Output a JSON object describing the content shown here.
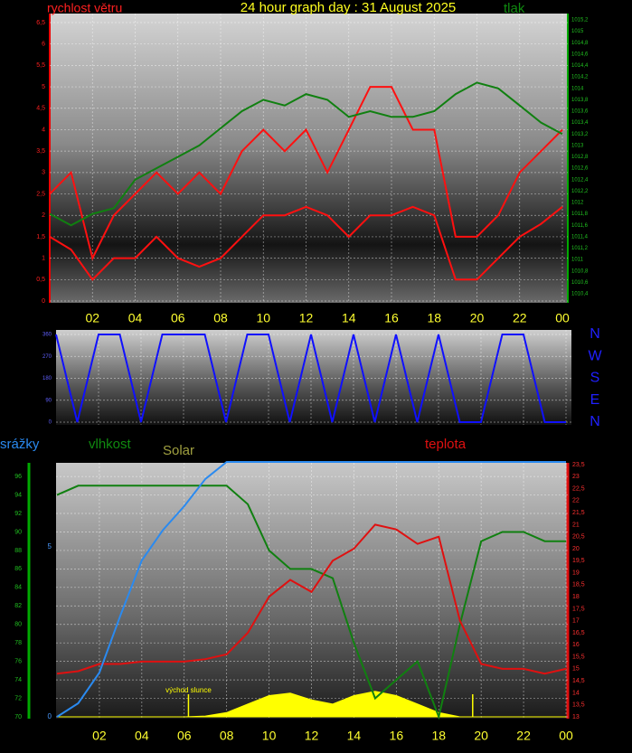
{
  "chart_data": [
    {
      "type": "line",
      "title": "24 hour graph day : 31 August 2025",
      "ylabel": "rychlost větru",
      "y2label": "tlak",
      "x": [
        0,
        1,
        2,
        3,
        4,
        5,
        6,
        7,
        8,
        9,
        10,
        11,
        12,
        13,
        14,
        15,
        16,
        17,
        18,
        19,
        20,
        21,
        22,
        23,
        24
      ],
      "xlim": [
        0,
        24
      ],
      "xticks": [
        {
          "value": 2,
          "label": "02"
        },
        {
          "value": 4,
          "label": "04"
        },
        {
          "value": 6,
          "label": "06"
        },
        {
          "value": 8,
          "label": "08"
        },
        10,
        12,
        14,
        16,
        18,
        20,
        22,
        {
          "value": 24,
          "label": "00"
        }
      ],
      "ylim": [
        0,
        6.5
      ],
      "yticks": [
        0,
        {
          "value": 0.5,
          "label": "0,5"
        },
        1,
        {
          "value": 1.5,
          "label": "1,5"
        },
        2,
        {
          "value": 2.5,
          "label": "2,5"
        },
        3,
        {
          "value": 3.5,
          "label": "3,5"
        },
        4,
        {
          "value": 4.5,
          "label": "4,5"
        },
        5,
        {
          "value": 5.5,
          "label": "5,5"
        },
        6,
        {
          "value": 6.5,
          "label": "6,5"
        }
      ],
      "y2lim": [
        1010.4,
        1015.2
      ],
      "y2ticks": [
        {
          "value": 1010.4,
          "label": "1010,4"
        },
        {
          "value": 1010.6,
          "label": "1010,6"
        },
        {
          "value": 1010.8,
          "label": "1010,8"
        },
        1011,
        {
          "value": 1011.2,
          "label": "1011,2"
        },
        {
          "value": 1011.4,
          "label": "1011,4"
        },
        {
          "value": 1011.6,
          "label": "1011,6"
        },
        {
          "value": 1011.8,
          "label": "1011,8"
        },
        1012,
        {
          "value": 1012.2,
          "label": "1012,2"
        },
        {
          "value": 1012.4,
          "label": "1012,4"
        },
        {
          "value": 1012.6,
          "label": "1012,6"
        },
        {
          "value": 1012.8,
          "label": "1012,8"
        },
        1013,
        {
          "value": 1013.2,
          "label": "1013,2"
        },
        {
          "value": 1013.4,
          "label": "1013,4"
        },
        {
          "value": 1013.6,
          "label": "1013,6"
        },
        {
          "value": 1013.8,
          "label": "1013,8"
        },
        1014,
        {
          "value": 1014.2,
          "label": "1014,2"
        },
        {
          "value": 1014.4,
          "label": "1014,4"
        },
        {
          "value": 1014.6,
          "label": "1014,6"
        },
        {
          "value": 1014.8,
          "label": "1014,8"
        },
        1015,
        {
          "value": 1015.2,
          "label": "1015,2"
        }
      ],
      "grid": true,
      "series": [
        {
          "color": "#ff1010",
          "values": [
            2.5,
            3,
            1,
            2,
            2.5,
            3,
            2.5,
            3,
            2.5,
            3.5,
            4,
            3.5,
            4,
            3,
            4,
            5,
            5,
            4,
            4,
            1.5,
            1.5,
            2,
            3,
            3.5,
            4
          ]
        },
        {
          "color": "#ff1010",
          "values": [
            1.5,
            1.2,
            0.5,
            1,
            1,
            1.5,
            1,
            0.8,
            1,
            1.5,
            2,
            2,
            2.2,
            2,
            1.5,
            2,
            2,
            2.2,
            2,
            0.5,
            0.5,
            1,
            1.5,
            1.8,
            2.2
          ]
        },
        {
          "color": "#108010",
          "axis": "y2",
          "values": [
            1011.8,
            1011.6,
            1011.8,
            1011.9,
            1012.4,
            1012.6,
            1012.8,
            1013,
            1013.3,
            1013.6,
            1013.8,
            1013.7,
            1013.9,
            1013.8,
            1013.5,
            1013.6,
            1013.5,
            1013.5,
            1013.6,
            1013.9,
            1014.1,
            1014,
            1013.7,
            1013.4,
            1013.2
          ]
        }
      ]
    },
    {
      "type": "line",
      "x": [
        0,
        1,
        2,
        3,
        4,
        5,
        6,
        7,
        8,
        9,
        10,
        11,
        12,
        13,
        14,
        15,
        16,
        17,
        18,
        19,
        20,
        21,
        22,
        23,
        24
      ],
      "xlim": [
        0,
        24
      ],
      "xticks": [
        2,
        4,
        6,
        8,
        10,
        12,
        14,
        16,
        18,
        20,
        22,
        24
      ],
      "ylim": [
        0,
        360
      ],
      "yticks": [
        0,
        90,
        180,
        270,
        360
      ],
      "y2lim": [
        0,
        360
      ],
      "y2ticks": [
        {
          "value": 360,
          "label": "N"
        },
        {
          "value": 270,
          "label": "W"
        },
        {
          "value": 180,
          "label": "S"
        },
        {
          "value": 90,
          "label": "E"
        },
        {
          "value": 0,
          "label": "N"
        }
      ],
      "grid": true,
      "series": [
        {
          "color": "#1010ff",
          "values": [
            360,
            0,
            360,
            360,
            0,
            360,
            360,
            360,
            0,
            360,
            360,
            0,
            360,
            0,
            360,
            0,
            360,
            0,
            360,
            0,
            0,
            360,
            360,
            0,
            0
          ]
        }
      ]
    },
    {
      "type": "line",
      "y3label": "srážky",
      "ylabel": "vlhkost",
      "y4label": "Solar",
      "y2label": "teplota",
      "annotation": {
        "text": "východ slunce",
        "x": 6.2
      },
      "sunset_x": 19.6,
      "x": [
        0,
        1,
        2,
        3,
        4,
        5,
        6,
        7,
        8,
        9,
        10,
        11,
        12,
        13,
        14,
        15,
        16,
        17,
        18,
        19,
        20,
        21,
        22,
        23,
        24
      ],
      "xlim": [
        0,
        24
      ],
      "xticks": [
        {
          "value": 2,
          "label": "02"
        },
        {
          "value": 4,
          "label": "04"
        },
        {
          "value": 6,
          "label": "06"
        },
        {
          "value": 8,
          "label": "08"
        },
        10,
        12,
        14,
        16,
        18,
        20,
        22,
        {
          "value": 24,
          "label": "00"
        }
      ],
      "ylim": [
        70,
        96.5
      ],
      "yticks": [
        70,
        72,
        74,
        76,
        78,
        80,
        82,
        84,
        86,
        88,
        90,
        92,
        94,
        96
      ],
      "y2lim": [
        13,
        23.5
      ],
      "y2ticks": [
        13,
        {
          "value": 13.5,
          "label": "13,5"
        },
        14,
        {
          "value": 14.5,
          "label": "14,5"
        },
        15,
        {
          "value": 15.5,
          "label": "15,5"
        },
        16,
        {
          "value": 16.5,
          "label": "16,5"
        },
        17,
        {
          "value": 17.5,
          "label": "17,5"
        },
        18,
        {
          "value": 18.5,
          "label": "18,5"
        },
        19,
        {
          "value": 19.5,
          "label": "19,5"
        },
        20,
        {
          "value": 20.5,
          "label": "20,5"
        },
        21,
        {
          "value": 21.5,
          "label": "21,5"
        },
        22,
        {
          "value": 22.5,
          "label": "22,5"
        },
        23,
        {
          "value": 23.5,
          "label": "23,5"
        }
      ],
      "y3lim": [
        0,
        7.5
      ],
      "y3ticks": [
        0,
        5
      ],
      "y4lim": [
        0,
        3000
      ],
      "grid": true,
      "series": [
        {
          "color": "#ffff00",
          "axis": "y4",
          "fill": true,
          "values": [
            0,
            0,
            0,
            0,
            0,
            0,
            0,
            10,
            50,
            150,
            250,
            280,
            200,
            150,
            250,
            300,
            250,
            150,
            50,
            0,
            0,
            0,
            0,
            0,
            0
          ]
        },
        {
          "color": "#108010",
          "values": [
            94,
            95,
            95,
            95,
            95,
            95,
            95,
            95,
            95,
            93,
            88,
            86,
            86,
            85,
            78,
            72,
            74,
            76,
            70,
            80,
            89,
            90,
            90,
            89,
            89
          ]
        },
        {
          "color": "#e01010",
          "axis": "y2",
          "values": [
            14.8,
            14.9,
            15.2,
            15.2,
            15.3,
            15.3,
            15.3,
            15.4,
            15.6,
            16.5,
            18,
            18.7,
            18.2,
            19.5,
            20,
            21,
            20.8,
            20.2,
            20.5,
            17,
            15.2,
            15,
            15,
            14.8,
            15
          ]
        },
        {
          "color": "#2a8af0",
          "axis": "y3",
          "values": [
            0,
            0.4,
            1.3,
            3,
            4.6,
            5.5,
            6.2,
            7,
            7.5,
            7.5,
            7.5,
            7.5,
            7.5,
            7.5,
            7.5,
            7.5,
            7.5,
            7.5,
            7.5,
            7.5,
            7.5,
            7.5,
            7.5,
            7.5,
            7.5
          ]
        }
      ]
    }
  ]
}
